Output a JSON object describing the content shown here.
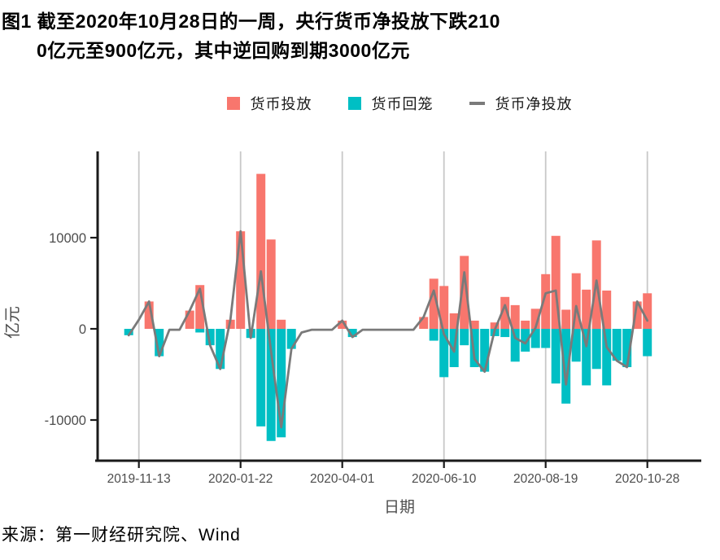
{
  "title": {
    "line1": "图1 截至2020年10月28日的一周，央行货币净投放下跌210",
    "line2": "0亿元至900亿元，其中逆回购到期3000亿元"
  },
  "source": "来源：第一财经研究院、Wind",
  "colors": {
    "injection": "#F8766D",
    "withdrawal": "#00BFC4",
    "net_line": "#7A7A7A",
    "gridline": "#C8C8C8",
    "axis": "#1a1a1a",
    "tick_label": "#4D4D4D"
  },
  "chart_data": {
    "type": "bar",
    "combo": "bar+line",
    "xlabel": "日期",
    "ylabel": "亿元",
    "ylim": [
      -14500,
      18500
    ],
    "y_ticks": [
      {
        "value": 10000,
        "label": "10000"
      },
      {
        "value": 0,
        "label": "0"
      },
      {
        "value": -10000,
        "label": "-10000"
      }
    ],
    "grid": "vertical-only",
    "legend_position": "top-center",
    "categories": [
      "2019-11-06",
      "2019-11-13",
      "2019-11-20",
      "2019-11-27",
      "2019-12-04",
      "2019-12-11",
      "2019-12-18",
      "2019-12-25",
      "2020-01-01",
      "2020-01-08",
      "2020-01-15",
      "2020-01-22",
      "2020-01-29",
      "2020-02-05",
      "2020-02-12",
      "2020-02-19",
      "2020-02-26",
      "2020-03-04",
      "2020-03-11",
      "2020-03-18",
      "2020-03-25",
      "2020-04-01",
      "2020-04-08",
      "2020-04-15",
      "2020-04-22",
      "2020-04-29",
      "2020-05-06",
      "2020-05-13",
      "2020-05-20",
      "2020-05-27",
      "2020-06-03",
      "2020-06-10",
      "2020-06-17",
      "2020-06-24",
      "2020-07-01",
      "2020-07-08",
      "2020-07-15",
      "2020-07-22",
      "2020-07-29",
      "2020-08-05",
      "2020-08-12",
      "2020-08-19",
      "2020-08-26",
      "2020-09-02",
      "2020-09-09",
      "2020-09-16",
      "2020-09-23",
      "2020-09-30",
      "2020-10-07",
      "2020-10-14",
      "2020-10-21",
      "2020-10-28"
    ],
    "x_tick_indices": [
      1,
      11,
      21,
      31,
      41,
      51
    ],
    "x_tick_labels": [
      "2019-11-13",
      "2020-01-22",
      "2020-04-01",
      "2020-06-10",
      "2020-08-19",
      "2020-10-28"
    ],
    "series": [
      {
        "name": "货币投放",
        "type": "bar",
        "color": "#F8766D",
        "values": [
          0,
          0,
          3000,
          0,
          0,
          0,
          2000,
          4800,
          0,
          0,
          1000,
          10700,
          0,
          17000,
          9800,
          1000,
          0,
          0,
          0,
          0,
          0,
          900,
          0,
          0,
          0,
          0,
          0,
          0,
          0,
          1300,
          5500,
          4700,
          1700,
          8000,
          900,
          0,
          700,
          3500,
          2600,
          900,
          2200,
          6000,
          10200,
          2100,
          6100,
          4300,
          9700,
          4200,
          0,
          0,
          3000,
          3900
        ]
      },
      {
        "name": "货币回笼",
        "type": "bar",
        "color": "#00BFC4",
        "values": [
          -700,
          0,
          0,
          -3000,
          0,
          0,
          0,
          -400,
          -1800,
          -4400,
          0,
          0,
          -1000,
          -10700,
          -12300,
          -11900,
          -2200,
          0,
          0,
          0,
          0,
          0,
          -900,
          0,
          0,
          0,
          0,
          0,
          0,
          0,
          -1300,
          -5300,
          -4200,
          -1800,
          -4200,
          -4700,
          -800,
          -900,
          -3600,
          -2500,
          -2100,
          -2100,
          -6000,
          -8200,
          -3600,
          -6200,
          -4400,
          -6200,
          -3500,
          -4200,
          0,
          -3000
        ]
      },
      {
        "name": "货币净投放",
        "type": "line",
        "color": "#7A7A7A",
        "values": [
          -700,
          1000,
          3000,
          -3000,
          -100,
          -100,
          2000,
          4400,
          -1800,
          -4400,
          1000,
          10700,
          -1000,
          6300,
          -2500,
          -10800,
          -2200,
          -400,
          -100,
          -100,
          -100,
          900,
          -900,
          -100,
          -100,
          -100,
          -100,
          -100,
          -100,
          1300,
          4200,
          -600,
          -2500,
          6200,
          -3300,
          -4700,
          -100,
          2600,
          -1000,
          -1600,
          100,
          3900,
          4200,
          -6100,
          2500,
          -1900,
          5300,
          -2000,
          -3500,
          -4200,
          3000,
          900
        ]
      }
    ]
  }
}
